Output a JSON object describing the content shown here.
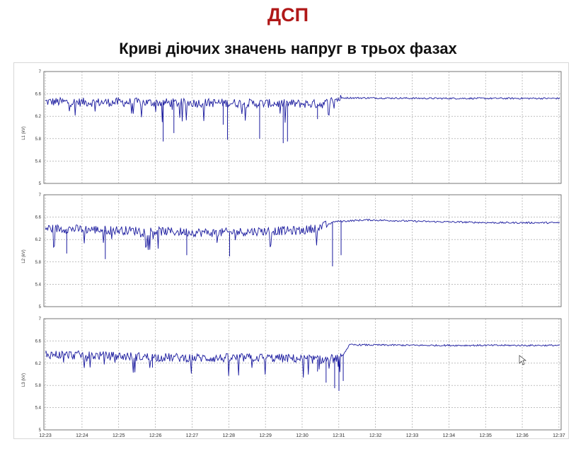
{
  "header": {
    "title": "ДСП",
    "subtitle": "Криві діючих значень напруг в трьох фазах",
    "title_color": "#b01818"
  },
  "chart_data": [
    {
      "type": "line",
      "ylabel": "L1 (kV)",
      "ylim": [
        5,
        7
      ],
      "yticks": [
        "7",
        "6.6",
        "6.2",
        "5.8",
        "5.4",
        "5"
      ],
      "ytick_values": [
        7,
        6.6,
        6.2,
        5.8,
        5.4,
        5
      ],
      "grid": true,
      "series_color": "#1a1a9e",
      "x": [
        12.2,
        12.4,
        12.6,
        12.8,
        13.0,
        13.2,
        13.5,
        13.55,
        13.6,
        14.0,
        14.3,
        14.6
      ],
      "y": [
        6.46,
        6.45,
        6.45,
        6.44,
        6.44,
        6.43,
        6.42,
        6.5,
        6.53,
        6.52,
        6.52,
        6.52
      ],
      "spikes": [
        {
          "x": 12.75,
          "y": 5.75
        },
        {
          "x": 12.8,
          "y": 5.9
        },
        {
          "x": 13.05,
          "y": 5.78
        },
        {
          "x": 13.2,
          "y": 5.8
        },
        {
          "x": 13.31,
          "y": 5.72
        },
        {
          "x": 13.33,
          "y": 5.75
        },
        {
          "x": 13.03,
          "y": 6.05
        },
        {
          "x": 13.47,
          "y": 6.15
        }
      ]
    },
    {
      "type": "line",
      "ylabel": "L2 (kV)",
      "ylim": [
        5,
        7
      ],
      "yticks": [
        "7",
        "6.6",
        "6.2",
        "5.8",
        "5.4",
        "5"
      ],
      "ytick_values": [
        7,
        6.6,
        6.2,
        5.8,
        5.4,
        5
      ],
      "grid": true,
      "series_color": "#1a1a9e",
      "x": [
        12.2,
        12.4,
        12.6,
        12.8,
        13.0,
        13.2,
        13.4,
        13.5,
        13.55,
        13.7,
        14.0,
        14.3,
        14.6
      ],
      "y": [
        6.4,
        6.38,
        6.36,
        6.34,
        6.32,
        6.35,
        6.36,
        6.44,
        6.52,
        6.55,
        6.52,
        6.5,
        6.5
      ],
      "spikes": [
        {
          "x": 13.54,
          "y": 5.72
        },
        {
          "x": 13.58,
          "y": 5.92
        },
        {
          "x": 12.3,
          "y": 5.95
        },
        {
          "x": 12.48,
          "y": 5.85
        },
        {
          "x": 12.86,
          "y": 5.92
        },
        {
          "x": 13.06,
          "y": 5.9
        }
      ]
    },
    {
      "type": "line",
      "ylabel": "L3 (kV)",
      "ylim": [
        5,
        7
      ],
      "yticks": [
        "7",
        "6.6",
        "6.2",
        "5.8",
        "5.4",
        "5"
      ],
      "ytick_values": [
        7,
        6.6,
        6.2,
        5.8,
        5.4,
        5
      ],
      "grid": true,
      "series_color": "#1a1a9e",
      "x": [
        12.2,
        12.4,
        12.6,
        12.8,
        13.0,
        13.2,
        13.4,
        13.5,
        13.58,
        13.62,
        14.0,
        14.3,
        14.6
      ],
      "y": [
        6.36,
        6.34,
        6.32,
        6.3,
        6.29,
        6.3,
        6.28,
        6.26,
        6.3,
        6.53,
        6.52,
        6.52,
        6.52
      ],
      "spikes": [
        {
          "x": 13.51,
          "y": 5.85
        },
        {
          "x": 13.55,
          "y": 5.75
        },
        {
          "x": 13.57,
          "y": 5.7
        },
        {
          "x": 13.59,
          "y": 5.88
        },
        {
          "x": 13.47,
          "y": 6.05
        },
        {
          "x": 12.7,
          "y": 6.12
        }
      ]
    }
  ],
  "x_axis": {
    "ticks": [
      "12:23",
      "12:24",
      "12:25",
      "12:26",
      "12:27",
      "12:28",
      "12:29",
      "12:30",
      "12:31",
      "12:32",
      "12:33",
      "12:34",
      "12:35",
      "12:36",
      "12:37"
    ],
    "tick_values": [
      12.23,
      12.24,
      12.25,
      12.26,
      12.27,
      12.28,
      12.29,
      12.3,
      12.31,
      12.32,
      12.33,
      12.34,
      12.35,
      12.36,
      12.37
    ]
  }
}
